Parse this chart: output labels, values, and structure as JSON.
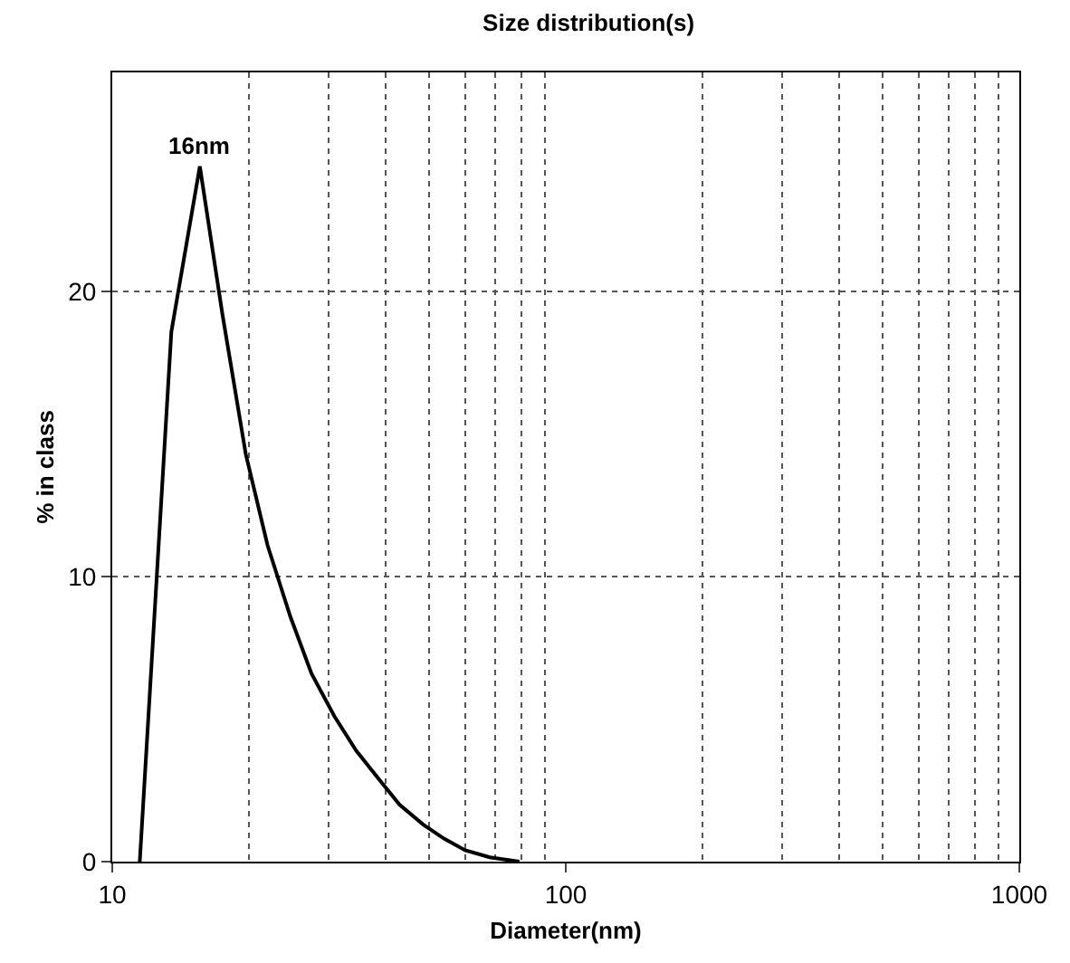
{
  "chart_data": {
    "type": "line",
    "title": "Size distribution(s)",
    "xlabel": "Diameter(nm)",
    "ylabel": "% in class",
    "log": "x",
    "xlim": [
      10,
      1000
    ],
    "xticks": [
      10,
      100,
      1000
    ],
    "ylim": [
      0,
      27.7
    ],
    "yticks": [
      0,
      10,
      20
    ],
    "grid": true,
    "line_style": "solid",
    "marker": "none",
    "series": [
      {
        "color": "#000000",
        "x": [
          11.5,
          13.5,
          15.6,
          17.5,
          19.7,
          22,
          24.7,
          27.5,
          30.9,
          34.5,
          38.7,
          43,
          48.5,
          54,
          60,
          68,
          79
        ],
        "values": [
          0,
          18.6,
          24.4,
          19.2,
          14.3,
          11.1,
          8.6,
          6.6,
          5.1,
          3.9,
          2.9,
          2,
          1.3,
          0.8,
          0.4,
          0.15,
          0
        ]
      }
    ],
    "annotations": [
      {
        "text": "16nm",
        "x": 15.6,
        "y": 24.4
      }
    ]
  }
}
